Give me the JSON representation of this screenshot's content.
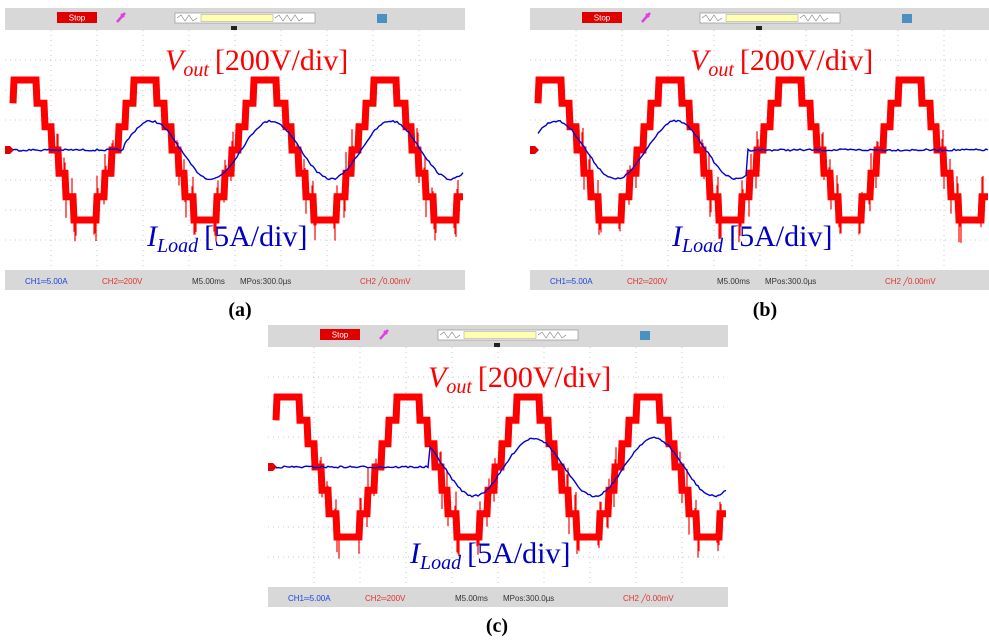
{
  "panels": [
    {
      "caption": "(a)",
      "stop": "Stop",
      "vout": {
        "symbol": "V",
        "sub": "out",
        "scale": "[200V/div]"
      },
      "iload": {
        "symbol": "I",
        "sub": "Load",
        "scale": "[5A/div]"
      },
      "status": [
        "CH1═5.00A",
        "CH2═200V",
        "M5.00ms",
        "MPos:300.0µs",
        "CH2 ╱0.00mV"
      ]
    },
    {
      "caption": "(b)",
      "stop": "Stop",
      "vout": {
        "symbol": "V",
        "sub": "out",
        "scale": "[200V/div]"
      },
      "iload": {
        "symbol": "I",
        "sub": "Load",
        "scale": "[5A/div]"
      },
      "status": [
        "CH1═5.00A",
        "CH2═200V",
        "M5.00ms",
        "MPos:300.0µs",
        "CH2 ╱0.00mV"
      ]
    },
    {
      "caption": "(c)",
      "stop": "Stop",
      "vout": {
        "symbol": "V",
        "sub": "out",
        "scale": "[200V/div]"
      },
      "iload": {
        "symbol": "I",
        "sub": "Load",
        "scale": "[5A/div]"
      },
      "status": [
        "CH1═5.00A",
        "CH2═200V",
        "M5.00ms",
        "MPos:300.0µs",
        "CH2 ╱0.00mV"
      ]
    }
  ]
}
